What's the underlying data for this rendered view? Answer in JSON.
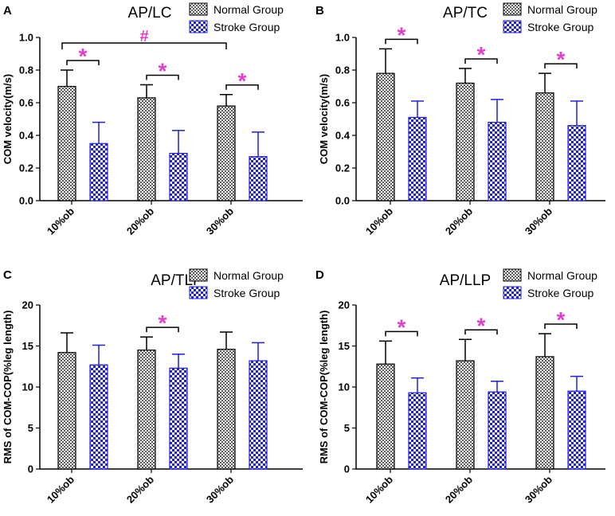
{
  "colors": {
    "normal_fill": "#8c8c8c",
    "stroke_fill": "#1f1fe0",
    "significance": "#e040c8",
    "axis": "#000000"
  },
  "chart_data": [
    {
      "panel": "A",
      "type": "bar",
      "title": "AP/LC",
      "ylabel": "COM velocity(m/s)",
      "ylim": [
        0,
        1.0
      ],
      "yticks": [
        "0.0",
        "0.2",
        "0.4",
        "0.6",
        "0.8",
        "1.0"
      ],
      "categories": [
        "10%ob",
        "20%ob",
        "30%ob"
      ],
      "series": [
        {
          "name": "Normal Group",
          "values": [
            0.7,
            0.63,
            0.58
          ],
          "errors": [
            0.1,
            0.08,
            0.07
          ]
        },
        {
          "name": "Stroke Group",
          "values": [
            0.35,
            0.29,
            0.27
          ],
          "errors": [
            0.13,
            0.14,
            0.15
          ]
        }
      ],
      "significance": [
        "*",
        "*",
        "*"
      ],
      "overall_marker": "#"
    },
    {
      "panel": "B",
      "type": "bar",
      "title": "AP/TC",
      "ylabel": "COM velocity(m/s)",
      "ylim": [
        0,
        1.0
      ],
      "yticks": [
        "0.0",
        "0.2",
        "0.4",
        "0.6",
        "0.8",
        "1.0"
      ],
      "categories": [
        "10%ob",
        "20%ob",
        "30%ob"
      ],
      "series": [
        {
          "name": "Normal Group",
          "values": [
            0.78,
            0.72,
            0.66
          ],
          "errors": [
            0.15,
            0.09,
            0.12
          ]
        },
        {
          "name": "Stroke Group",
          "values": [
            0.51,
            0.48,
            0.46
          ],
          "errors": [
            0.1,
            0.14,
            0.15
          ]
        }
      ],
      "significance": [
        "*",
        "*",
        "*"
      ]
    },
    {
      "panel": "C",
      "type": "bar",
      "title": "AP/TLP",
      "ylabel": "RMS of COM-COP(%leg length)",
      "ylim": [
        0,
        20
      ],
      "yticks": [
        "0",
        "5",
        "10",
        "15",
        "20"
      ],
      "categories": [
        "10%ob",
        "20%ob",
        "30%ob"
      ],
      "series": [
        {
          "name": "Normal Group",
          "values": [
            14.2,
            14.5,
            14.6
          ],
          "errors": [
            2.4,
            1.6,
            2.1
          ]
        },
        {
          "name": "Stroke Group",
          "values": [
            12.7,
            12.3,
            13.2
          ],
          "errors": [
            2.4,
            1.7,
            2.2
          ]
        }
      ],
      "significance": [
        "",
        "*",
        ""
      ]
    },
    {
      "panel": "D",
      "type": "bar",
      "title": "AP/LLP",
      "ylabel": "RMS of COM-COP(%leg length)",
      "ylim": [
        0,
        20
      ],
      "yticks": [
        "0",
        "5",
        "10",
        "15",
        "20"
      ],
      "categories": [
        "10%ob",
        "20%ob",
        "30%ob"
      ],
      "series": [
        {
          "name": "Normal Group",
          "values": [
            12.8,
            13.2,
            13.7
          ],
          "errors": [
            2.8,
            2.6,
            2.8
          ]
        },
        {
          "name": "Stroke Group",
          "values": [
            9.3,
            9.4,
            9.5
          ],
          "errors": [
            1.8,
            1.3,
            1.8
          ]
        }
      ],
      "significance": [
        "*",
        "*",
        "*"
      ]
    }
  ]
}
